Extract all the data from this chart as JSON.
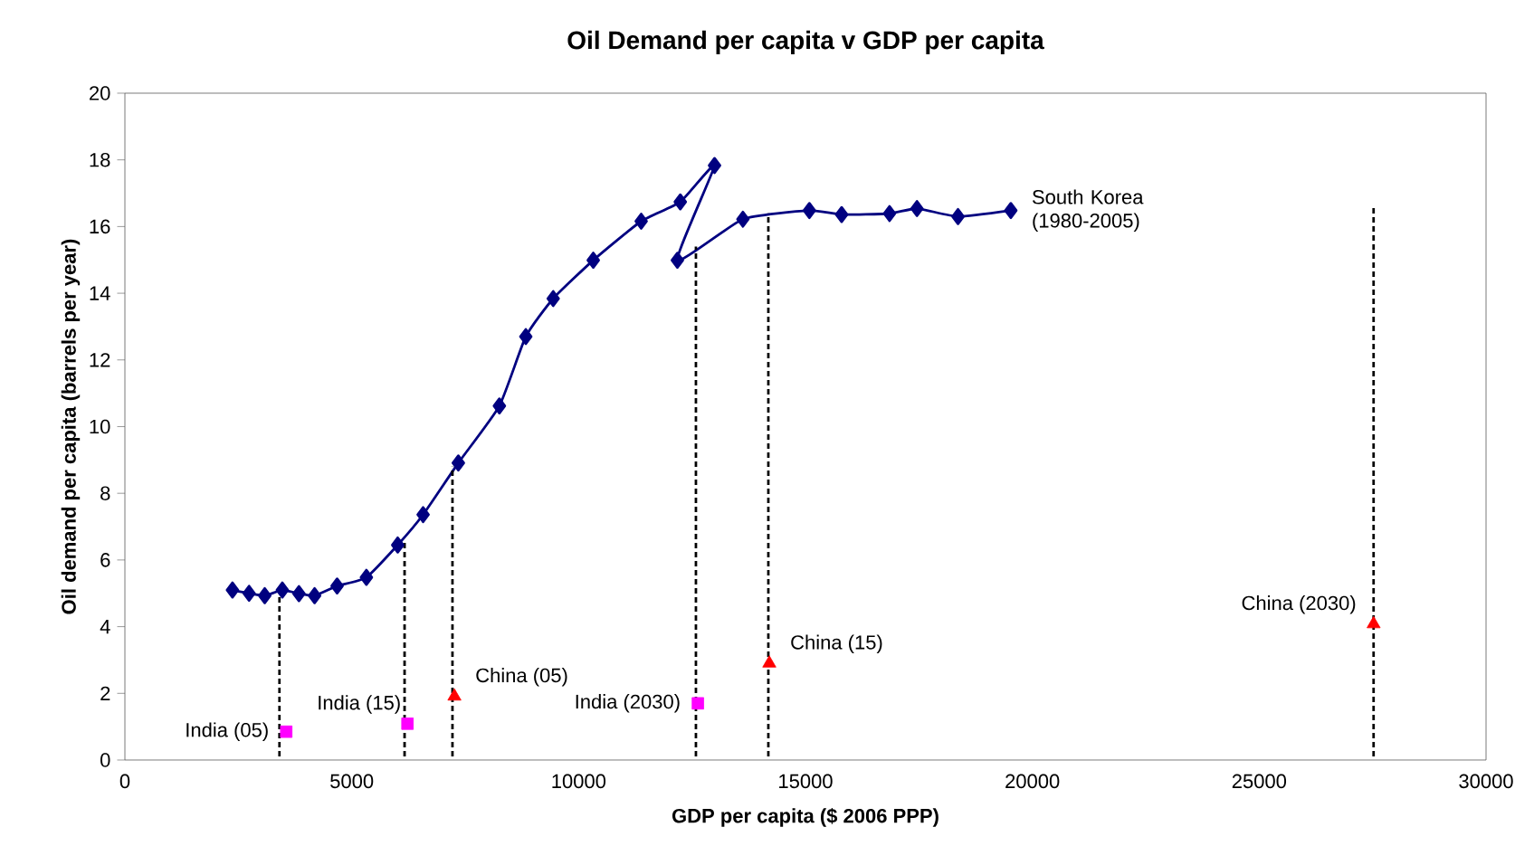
{
  "chart_data": {
    "type": "line",
    "title": "Oil Demand per capita v GDP per capita",
    "xlabel": "GDP per capita ($ 2006 PPP)",
    "ylabel": "Oil demand per capita (barrels per year)",
    "xlim": [
      0,
      30000
    ],
    "ylim": [
      0,
      20
    ],
    "xticks": [
      0,
      5000,
      10000,
      15000,
      20000,
      25000,
      30000
    ],
    "yticks": [
      0,
      2,
      4,
      6,
      8,
      10,
      12,
      14,
      16,
      18,
      20
    ],
    "grid": false,
    "series": [
      {
        "color": "#000080",
        "marker": "diamond",
        "line_style": "solid",
        "x": [
          2371,
          2737,
          3082,
          3470,
          3836,
          4181,
          4677,
          5323,
          6013,
          6573,
          7349,
          8254,
          8836,
          9440,
          10323,
          11379,
          12241,
          12996,
          12177,
          13621,
          15086,
          15797,
          16853,
          17457,
          18362,
          19526
        ],
        "values": [
          5.1,
          5.0,
          4.93,
          5.1,
          4.99,
          4.93,
          5.22,
          5.48,
          6.45,
          7.36,
          8.91,
          10.62,
          12.7,
          13.84,
          14.99,
          16.16,
          16.74,
          17.83,
          14.99,
          16.22,
          16.48,
          16.36,
          16.39,
          16.54,
          16.3,
          16.48
        ]
      },
      {
        "type": "scatter",
        "color": "#ff00ff",
        "marker": "square",
        "x": [
          3556,
          6228,
          12629
        ],
        "values": [
          0.85,
          1.09,
          1.7
        ]
      },
      {
        "type": "scatter",
        "color": "#ff0000",
        "marker": "triangle",
        "x": [
          7263,
          14203,
          27522
        ],
        "values": [
          1.91,
          2.9,
          4.08
        ]
      },
      {
        "type": "line",
        "color": "#000000",
        "marker": "none",
        "line_style": "dashed",
        "x": [
          3405,
          3405
        ],
        "values": [
          0,
          5.1
        ]
      },
      {
        "type": "line",
        "color": "#000000",
        "marker": "none",
        "line_style": "dashed",
        "x": [
          6164,
          6164
        ],
        "values": [
          0,
          6.6
        ]
      },
      {
        "type": "line",
        "color": "#000000",
        "marker": "none",
        "line_style": "dashed",
        "x": [
          7220,
          7220
        ],
        "values": [
          0,
          8.8
        ]
      },
      {
        "type": "line",
        "color": "#000000",
        "marker": "none",
        "line_style": "dashed",
        "x": [
          12586,
          12586
        ],
        "values": [
          0,
          15.4
        ]
      },
      {
        "type": "line",
        "color": "#000000",
        "marker": "none",
        "line_style": "dashed",
        "x": [
          14181,
          14181
        ],
        "values": [
          0,
          16.4
        ]
      },
      {
        "type": "line",
        "color": "#000000",
        "marker": "none",
        "line_style": "dashed",
        "x": [
          27522,
          27522
        ],
        "values": [
          0,
          16.6
        ]
      }
    ],
    "annotations": [
      {
        "text": "South Korea (1980-2005)",
        "x": 19526,
        "y": 16.48
      },
      {
        "text": "India (05)",
        "x": 3556,
        "y": 0.85
      },
      {
        "text": "India (15)",
        "x": 6228,
        "y": 1.09
      },
      {
        "text": "India (2030)",
        "x": 12629,
        "y": 1.7
      },
      {
        "text": "China (05)",
        "x": 7263,
        "y": 1.91
      },
      {
        "text": "China (15)",
        "x": 14203,
        "y": 2.9
      },
      {
        "text": "China (2030)",
        "x": 27522,
        "y": 4.08
      }
    ]
  }
}
